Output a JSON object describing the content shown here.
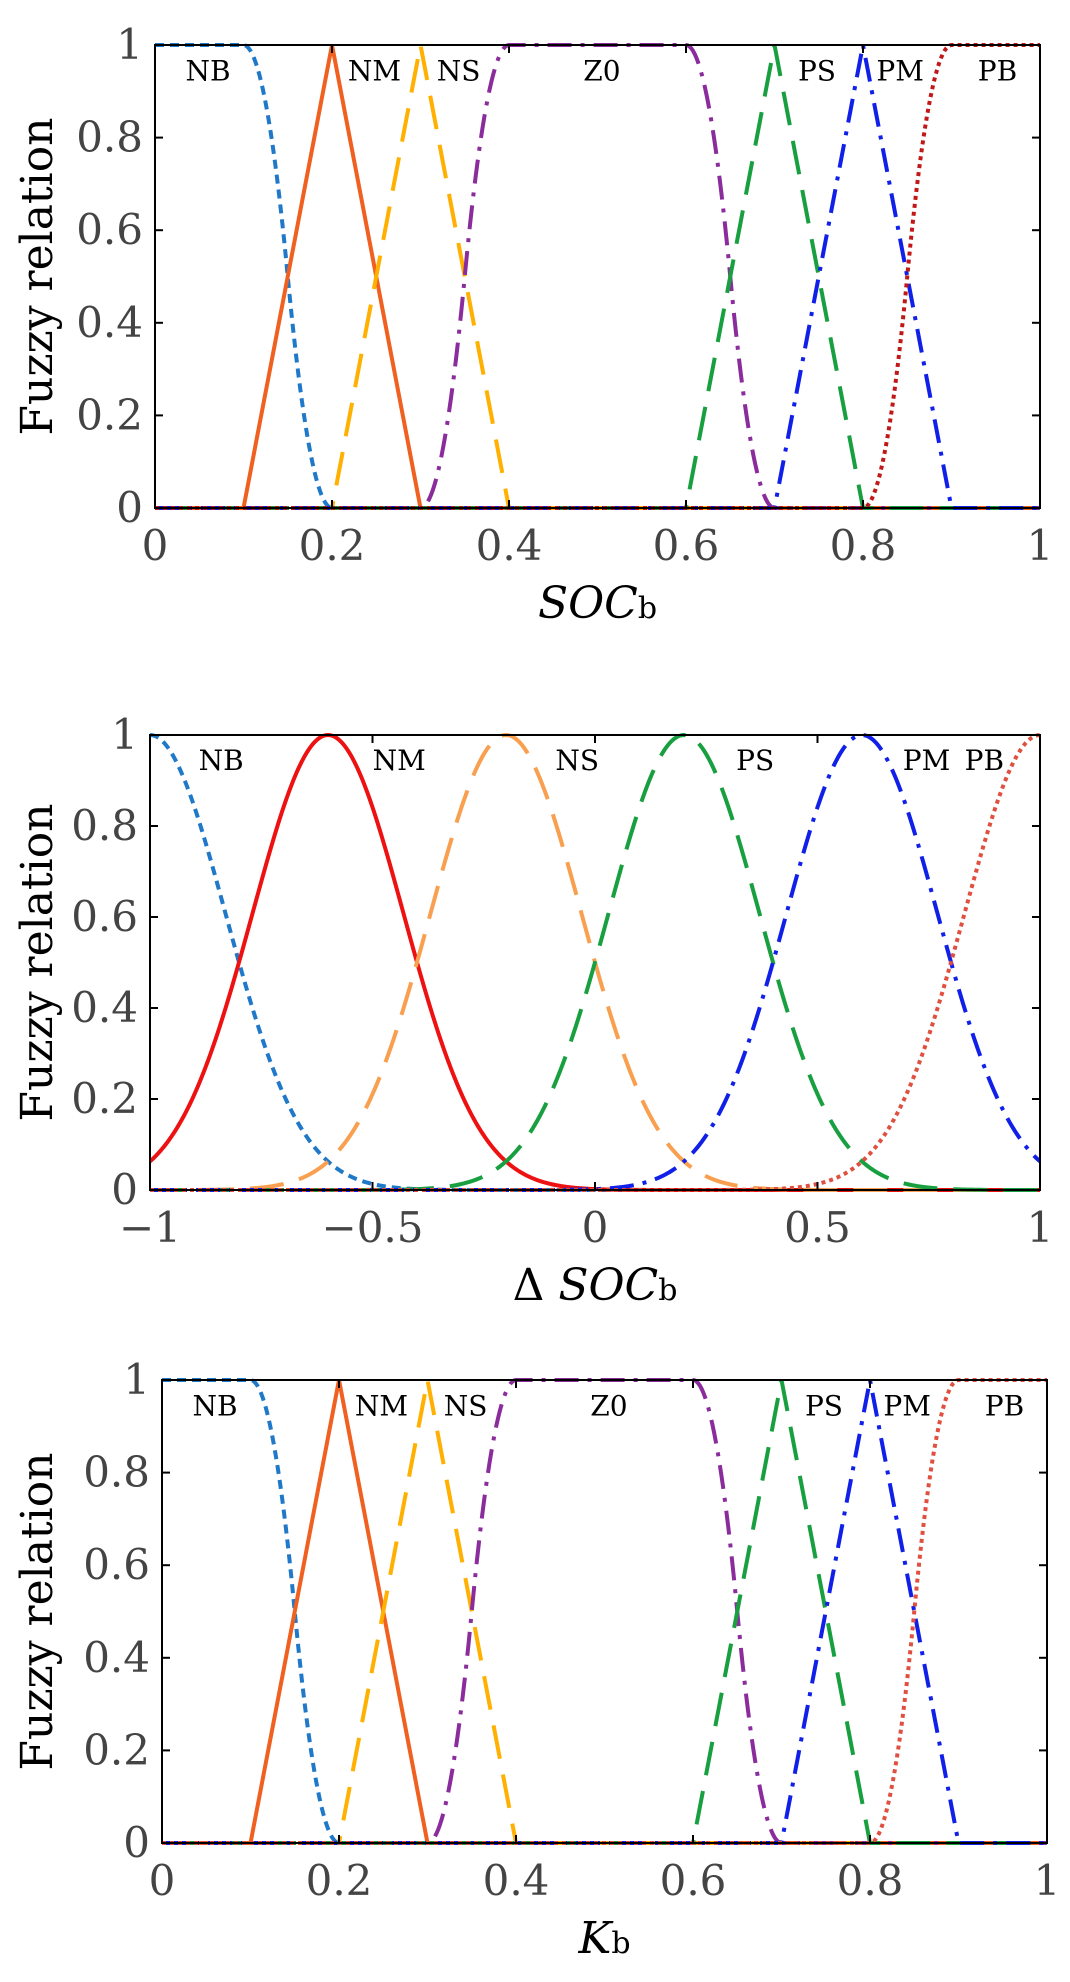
{
  "chart_data": [
    {
      "type": "line",
      "title": "",
      "xlabel": "SOC",
      "xlabel_sub": "b",
      "xlabel_prefix": "",
      "ylabel": "Fuzzy relation",
      "xlim": [
        0,
        1
      ],
      "ylim": [
        0,
        1
      ],
      "xticks": [
        "0",
        "0.2",
        "0.4",
        "0.6",
        "0.8",
        "1"
      ],
      "yticks": [
        "0",
        "0.2",
        "0.4",
        "0.6",
        "0.8",
        "1"
      ],
      "grid": false,
      "series": [
        {
          "name": "NB",
          "shape": "zmf",
          "params": [
            0.1,
            0.2
          ],
          "color": "#1f78c8",
          "style": "dashed"
        },
        {
          "name": "NM",
          "shape": "trimf",
          "params": [
            0.1,
            0.2,
            0.3
          ],
          "color": "#f06020",
          "style": "solid"
        },
        {
          "name": "NS",
          "shape": "trimf",
          "params": [
            0.2,
            0.3,
            0.4
          ],
          "color": "#ffb000",
          "style": "longdash"
        },
        {
          "name": "Z0",
          "shape": "pimf",
          "params": [
            0.3,
            0.4,
            0.6,
            0.7
          ],
          "color": "#8b2c9c",
          "style": "dashdot"
        },
        {
          "name": "PS",
          "shape": "trimf",
          "params": [
            0.6,
            0.7,
            0.8
          ],
          "color": "#18a040",
          "style": "longdash"
        },
        {
          "name": "PM",
          "shape": "trimf",
          "params": [
            0.7,
            0.8,
            0.9
          ],
          "color": "#1020e8",
          "style": "dashdot"
        },
        {
          "name": "PB",
          "shape": "smf",
          "params": [
            0.8,
            0.9
          ],
          "color": "#c01818",
          "style": "dotted"
        }
      ],
      "term_labels": [
        {
          "text": "NB",
          "x": 0.06,
          "y": 0.94
        },
        {
          "text": "NM",
          "x": 0.248,
          "y": 0.94
        },
        {
          "text": "NS",
          "x": 0.343,
          "y": 0.94
        },
        {
          "text": "Z0",
          "x": 0.505,
          "y": 0.94
        },
        {
          "text": "PS",
          "x": 0.748,
          "y": 0.94
        },
        {
          "text": "PM",
          "x": 0.842,
          "y": 0.94
        },
        {
          "text": "PB",
          "x": 0.952,
          "y": 0.94
        }
      ]
    },
    {
      "type": "line",
      "title": "",
      "xlabel": "SOC",
      "xlabel_sub": "b",
      "xlabel_prefix": "Δ",
      "ylabel": "Fuzzy relation",
      "xlim": [
        -1,
        1
      ],
      "ylim": [
        0,
        1
      ],
      "xticks": [
        "−1",
        "−0.5",
        "0",
        "0.5",
        "1"
      ],
      "yticks": [
        "0",
        "0.2",
        "0.4",
        "0.6",
        "0.8",
        "1"
      ],
      "grid": false,
      "series": [
        {
          "name": "NB",
          "shape": "gaussmf",
          "params": [
            -1.0,
            0.17
          ],
          "color": "#1f78c8",
          "style": "dashed"
        },
        {
          "name": "NM",
          "shape": "gaussmf",
          "params": [
            -0.6,
            0.17
          ],
          "color": "#ee1111",
          "style": "solid"
        },
        {
          "name": "NS",
          "shape": "gaussmf",
          "params": [
            -0.2,
            0.17
          ],
          "color": "#f8a050",
          "style": "longdash"
        },
        {
          "name": "PS",
          "shape": "gaussmf",
          "params": [
            0.2,
            0.17
          ],
          "color": "#18a040",
          "style": "longdash"
        },
        {
          "name": "PM",
          "shape": "gaussmf",
          "params": [
            0.6,
            0.17
          ],
          "color": "#1020e8",
          "style": "dashdot"
        },
        {
          "name": "PB",
          "shape": "gaussmf",
          "params": [
            1.0,
            0.17
          ],
          "color": "#e05040",
          "style": "dotted"
        }
      ],
      "term_labels": [
        {
          "text": "NB",
          "x": -0.84,
          "y": 0.94
        },
        {
          "text": "NM",
          "x": -0.44,
          "y": 0.94
        },
        {
          "text": "NS",
          "x": -0.04,
          "y": 0.94
        },
        {
          "text": "PS",
          "x": 0.36,
          "y": 0.94
        },
        {
          "text": "PM",
          "x": 0.745,
          "y": 0.94
        },
        {
          "text": "PB",
          "x": 0.875,
          "y": 0.94
        }
      ]
    },
    {
      "type": "line",
      "title": "",
      "xlabel": "K",
      "xlabel_sub": "b",
      "xlabel_prefix": "",
      "ylabel": "Fuzzy relation",
      "xlim": [
        0,
        1
      ],
      "ylim": [
        0,
        1
      ],
      "xticks": [
        "0",
        "0.2",
        "0.4",
        "0.6",
        "0.8",
        "1"
      ],
      "yticks": [
        "0",
        "0.2",
        "0.4",
        "0.6",
        "0.8",
        "1"
      ],
      "grid": false,
      "series": [
        {
          "name": "NB",
          "shape": "zmf",
          "params": [
            0.1,
            0.2
          ],
          "color": "#1f78c8",
          "style": "dashed"
        },
        {
          "name": "NM",
          "shape": "trimf",
          "params": [
            0.1,
            0.2,
            0.3
          ],
          "color": "#f06020",
          "style": "solid"
        },
        {
          "name": "NS",
          "shape": "trimf",
          "params": [
            0.2,
            0.3,
            0.4
          ],
          "color": "#ffb000",
          "style": "longdash"
        },
        {
          "name": "Z0",
          "shape": "pimf",
          "params": [
            0.3,
            0.4,
            0.6,
            0.7
          ],
          "color": "#8b2c9c",
          "style": "dashdot"
        },
        {
          "name": "PS",
          "shape": "trimf",
          "params": [
            0.6,
            0.7,
            0.8
          ],
          "color": "#18a040",
          "style": "longdash"
        },
        {
          "name": "PM",
          "shape": "trimf",
          "params": [
            0.7,
            0.8,
            0.9
          ],
          "color": "#1020e8",
          "style": "dashdot"
        },
        {
          "name": "PB",
          "shape": "smf",
          "params": [
            0.8,
            0.9
          ],
          "color": "#e05040",
          "style": "dotted"
        }
      ],
      "term_labels": [
        {
          "text": "NB",
          "x": 0.06,
          "y": 0.94
        },
        {
          "text": "NM",
          "x": 0.248,
          "y": 0.94
        },
        {
          "text": "NS",
          "x": 0.343,
          "y": 0.94
        },
        {
          "text": "Z0",
          "x": 0.505,
          "y": 0.94
        },
        {
          "text": "PS",
          "x": 0.748,
          "y": 0.94
        },
        {
          "text": "PM",
          "x": 0.842,
          "y": 0.94
        },
        {
          "text": "PB",
          "x": 0.952,
          "y": 0.94
        }
      ]
    }
  ]
}
